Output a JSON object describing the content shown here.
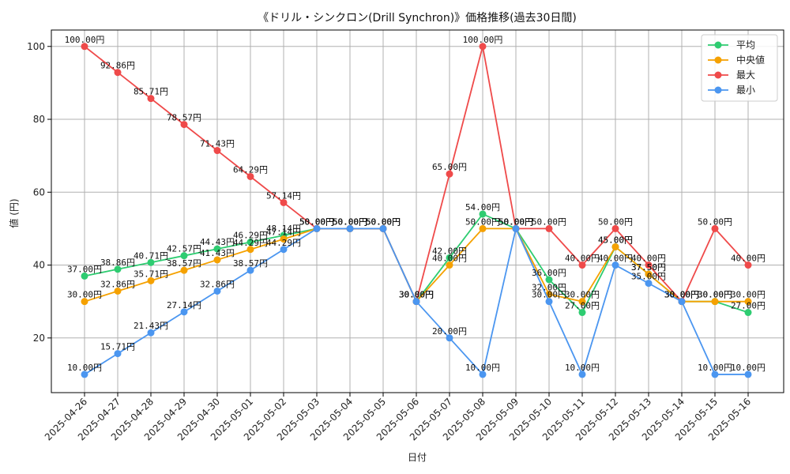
{
  "chart_data": {
    "type": "line",
    "title": "《ドリル・シンクロン(Drill Synchron)》価格推移(過去30日間)",
    "xlabel": "日付",
    "ylabel": "値 (円)",
    "ylim": [
      5,
      104.5
    ],
    "yticks": [
      20,
      40,
      60,
      80,
      100
    ],
    "grid": true,
    "legend_position": "top-right",
    "categories": [
      "2025-04-26",
      "2025-04-27",
      "2025-04-28",
      "2025-04-29",
      "2025-04-30",
      "2025-05-01",
      "2025-05-02",
      "2025-05-03",
      "2025-05-04",
      "2025-05-05",
      "2025-05-06",
      "2025-05-07",
      "2025-05-08",
      "2025-05-09",
      "2025-05-10",
      "2025-05-11",
      "2025-05-12",
      "2025-05-13",
      "2025-05-14",
      "2025-05-15",
      "2025-05-16"
    ],
    "series": [
      {
        "name": "平均",
        "color": "#2ecc71",
        "values": [
          37.0,
          38.86,
          40.71,
          42.57,
          44.43,
          46.29,
          48.14,
          50.0,
          50.0,
          50.0,
          30.0,
          42.0,
          54.0,
          50.0,
          36.0,
          27.0,
          45.0,
          37.5,
          30.0,
          30.0,
          27.0
        ]
      },
      {
        "name": "中央値",
        "color": "#f5a100",
        "values": [
          30.0,
          32.86,
          35.71,
          38.57,
          41.43,
          44.29,
          47.14,
          50.0,
          50.0,
          50.0,
          30.0,
          40.0,
          50.0,
          50.0,
          32.0,
          30.0,
          45.0,
          37.5,
          30.0,
          30.0,
          30.0
        ]
      },
      {
        "name": "最大",
        "color": "#ef4a4a",
        "values": [
          100.0,
          92.86,
          85.71,
          78.57,
          71.43,
          64.29,
          57.14,
          50.0,
          50.0,
          50.0,
          30.0,
          65.0,
          100.0,
          50.0,
          50.0,
          40.0,
          50.0,
          40.0,
          30.0,
          50.0,
          40.0
        ]
      },
      {
        "name": "最小",
        "color": "#4b96f0",
        "values": [
          10.0,
          15.71,
          21.43,
          27.14,
          32.86,
          38.57,
          44.29,
          50.0,
          50.0,
          50.0,
          30.0,
          20.0,
          10.0,
          50.0,
          30.0,
          10.0,
          40.0,
          35.0,
          30.0,
          10.0,
          10.0
        ]
      }
    ],
    "value_suffix": "円"
  }
}
